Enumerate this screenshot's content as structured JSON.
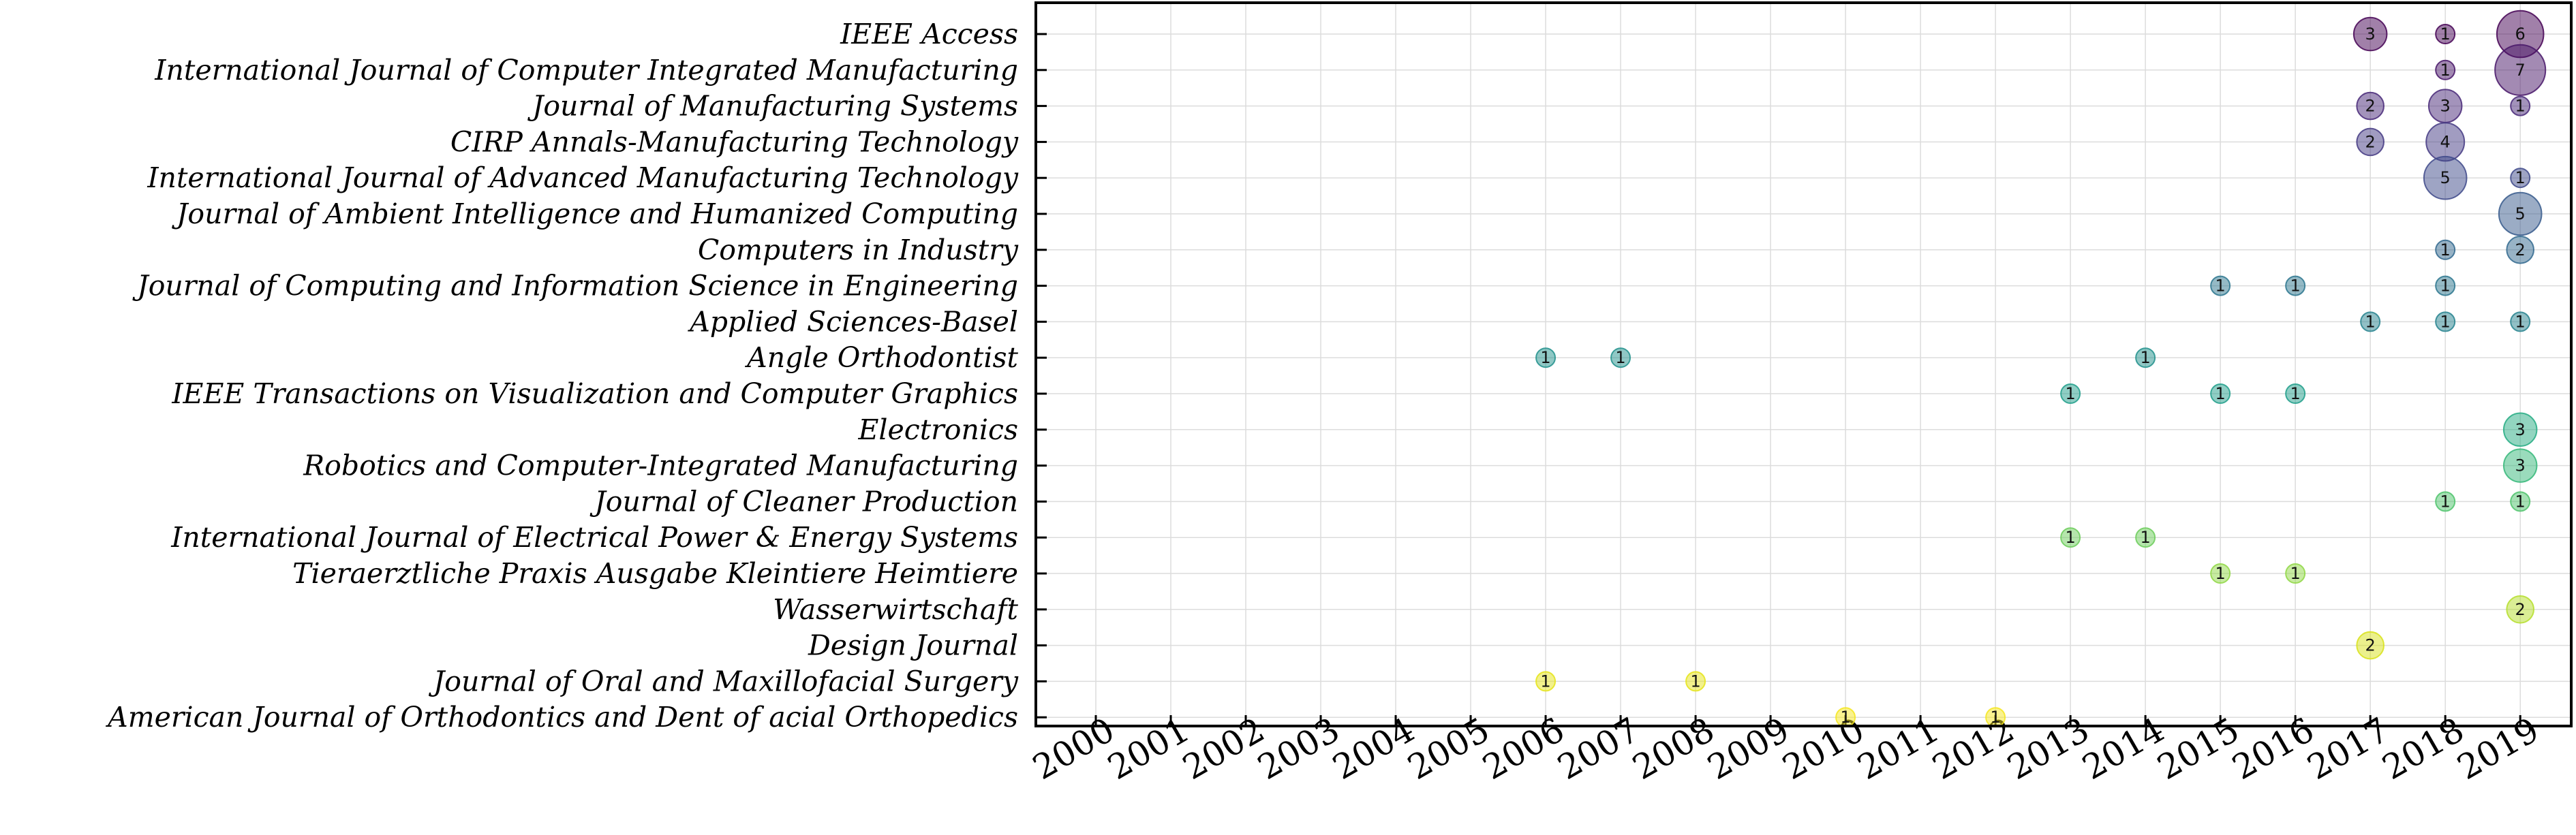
{
  "chart_data": {
    "type": "scatter",
    "title": "",
    "xlabel": "",
    "ylabel": "",
    "grid": true,
    "legend": "none",
    "colormap": "viridis",
    "x_ticks": [
      "2000",
      "2001",
      "2002",
      "2003",
      "2004",
      "2005",
      "2006",
      "2007",
      "2008",
      "2009",
      "2010",
      "2011",
      "2012",
      "2013",
      "2014",
      "2015",
      "2016",
      "2017",
      "2018",
      "2019"
    ],
    "journals": [
      "IEEE Access",
      "International Journal of Computer Integrated Manufacturing",
      "Journal of Manufacturing Systems",
      "CIRP Annals-Manufacturing Technology",
      "International Journal of Advanced Manufacturing Technology",
      "Journal of Ambient Intelligence and Humanized Computing",
      "Computers in Industry",
      "Journal of Computing and Information Science in Engineering",
      "Applied Sciences-Basel",
      "Angle Orthodontist",
      "IEEE Transactions on Visualization and Computer Graphics",
      "Electronics",
      "Robotics and Computer-Integrated Manufacturing",
      "Journal of Cleaner Production",
      "International Journal of Electrical Power & Energy Systems",
      "Tieraerztliche Praxis Ausgabe Kleintiere Heimtiere",
      "Wasserwirtschaft",
      "Design Journal",
      "Journal of Oral and Maxillofacial Surgery",
      "American Journal of Orthodontics and Dent of acial Orthopedics"
    ],
    "row_colors": [
      "#440154",
      "#481668",
      "#482878",
      "#443983",
      "#3e4989",
      "#375a8c",
      "#31688e",
      "#2b758e",
      "#26828e",
      "#21918c",
      "#1f9e89",
      "#25ab82",
      "#35b779",
      "#4ec36b",
      "#6ccd5a",
      "#8fd744",
      "#b5de2b",
      "#d8e219",
      "#e5e419",
      "#f5e61f"
    ],
    "points": [
      {
        "journal": "IEEE Access",
        "year": 2017,
        "count": 3
      },
      {
        "journal": "IEEE Access",
        "year": 2018,
        "count": 1
      },
      {
        "journal": "IEEE Access",
        "year": 2019,
        "count": 6
      },
      {
        "journal": "International Journal of Computer Integrated Manufacturing",
        "year": 2018,
        "count": 1
      },
      {
        "journal": "International Journal of Computer Integrated Manufacturing",
        "year": 2019,
        "count": 7
      },
      {
        "journal": "Journal of Manufacturing Systems",
        "year": 2017,
        "count": 2
      },
      {
        "journal": "Journal of Manufacturing Systems",
        "year": 2018,
        "count": 3
      },
      {
        "journal": "Journal of Manufacturing Systems",
        "year": 2019,
        "count": 1
      },
      {
        "journal": "CIRP Annals-Manufacturing Technology",
        "year": 2017,
        "count": 2
      },
      {
        "journal": "CIRP Annals-Manufacturing Technology",
        "year": 2018,
        "count": 4
      },
      {
        "journal": "International Journal of Advanced Manufacturing Technology",
        "year": 2018,
        "count": 5
      },
      {
        "journal": "International Journal of Advanced Manufacturing Technology",
        "year": 2019,
        "count": 1
      },
      {
        "journal": "Journal of Ambient Intelligence and Humanized Computing",
        "year": 2019,
        "count": 5
      },
      {
        "journal": "Computers in Industry",
        "year": 2018,
        "count": 1
      },
      {
        "journal": "Computers in Industry",
        "year": 2019,
        "count": 2
      },
      {
        "journal": "Journal of Computing and Information Science in Engineering",
        "year": 2015,
        "count": 1
      },
      {
        "journal": "Journal of Computing and Information Science in Engineering",
        "year": 2016,
        "count": 1
      },
      {
        "journal": "Journal of Computing and Information Science in Engineering",
        "year": 2018,
        "count": 1
      },
      {
        "journal": "Applied Sciences-Basel",
        "year": 2017,
        "count": 1
      },
      {
        "journal": "Applied Sciences-Basel",
        "year": 2018,
        "count": 1
      },
      {
        "journal": "Applied Sciences-Basel",
        "year": 2019,
        "count": 1
      },
      {
        "journal": "Angle Orthodontist",
        "year": 2006,
        "count": 1
      },
      {
        "journal": "Angle Orthodontist",
        "year": 2007,
        "count": 1
      },
      {
        "journal": "Angle Orthodontist",
        "year": 2014,
        "count": 1
      },
      {
        "journal": "IEEE Transactions on Visualization and Computer Graphics",
        "year": 2013,
        "count": 1
      },
      {
        "journal": "IEEE Transactions on Visualization and Computer Graphics",
        "year": 2015,
        "count": 1
      },
      {
        "journal": "IEEE Transactions on Visualization and Computer Graphics",
        "year": 2016,
        "count": 1
      },
      {
        "journal": "Electronics",
        "year": 2019,
        "count": 3
      },
      {
        "journal": "Robotics and Computer-Integrated Manufacturing",
        "year": 2019,
        "count": 3
      },
      {
        "journal": "Journal of Cleaner Production",
        "year": 2018,
        "count": 1
      },
      {
        "journal": "Journal of Cleaner Production",
        "year": 2019,
        "count": 1
      },
      {
        "journal": "International Journal of Electrical Power & Energy Systems",
        "year": 2013,
        "count": 1
      },
      {
        "journal": "International Journal of Electrical Power & Energy Systems",
        "year": 2014,
        "count": 1
      },
      {
        "journal": "Tieraerztliche Praxis Ausgabe Kleintiere Heimtiere",
        "year": 2015,
        "count": 1
      },
      {
        "journal": "Tieraerztliche Praxis Ausgabe Kleintiere Heimtiere",
        "year": 2016,
        "count": 1
      },
      {
        "journal": "Wasserwirtschaft",
        "year": 2019,
        "count": 2
      },
      {
        "journal": "Design Journal",
        "year": 2017,
        "count": 2
      },
      {
        "journal": "Journal of Oral and Maxillofacial Surgery",
        "year": 2006,
        "count": 1
      },
      {
        "journal": "Journal of Oral and Maxillofacial Surgery",
        "year": 2008,
        "count": 1
      },
      {
        "journal": "American Journal of Orthodontics and Dent of acial Orthopedics",
        "year": 2010,
        "count": 1
      },
      {
        "journal": "American Journal of Orthodontics and Dent of acial Orthopedics",
        "year": 2012,
        "count": 1
      }
    ]
  }
}
